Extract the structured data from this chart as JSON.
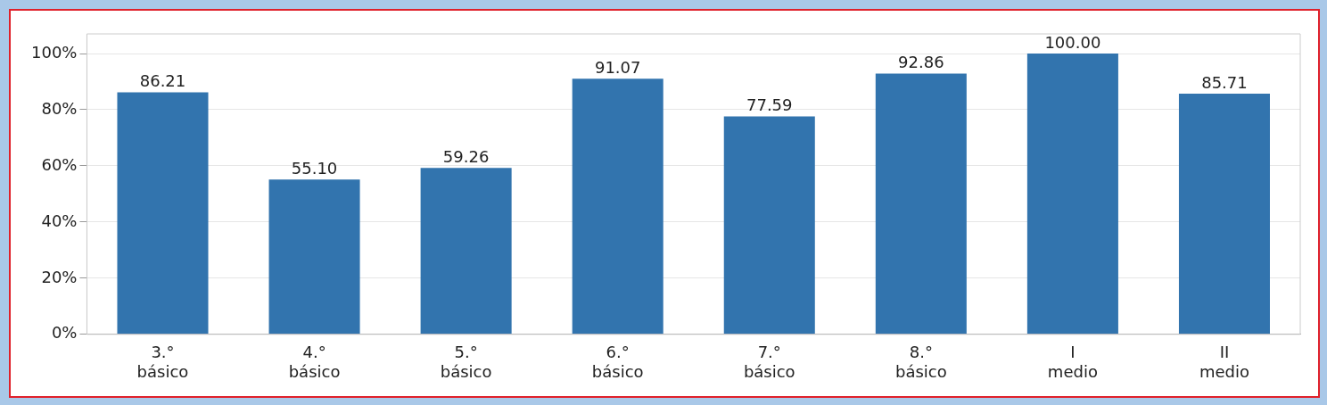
{
  "chart_data": {
    "type": "bar",
    "categories": [
      "3.° básico",
      "4.° básico",
      "5.° básico",
      "6.° básico",
      "7.° básico",
      "8.° básico",
      "I medio",
      "II medio"
    ],
    "values": [
      86.21,
      55.1,
      59.26,
      91.07,
      77.59,
      92.86,
      100.0,
      85.71
    ],
    "value_labels": [
      "86.21",
      "55.10",
      "59.26",
      "91.07",
      "77.59",
      "92.86",
      "100.00",
      "85.71"
    ],
    "color": "#3274ae",
    "ylim": [
      0,
      107
    ],
    "yticks": [
      {
        "value": 0,
        "label": "0%"
      },
      {
        "value": 20,
        "label": "20%"
      },
      {
        "value": 40,
        "label": "40%"
      },
      {
        "value": 60,
        "label": "60%"
      },
      {
        "value": 80,
        "label": "80%"
      },
      {
        "value": 100,
        "label": "100%"
      }
    ],
    "grid": "y",
    "legend": false
  }
}
